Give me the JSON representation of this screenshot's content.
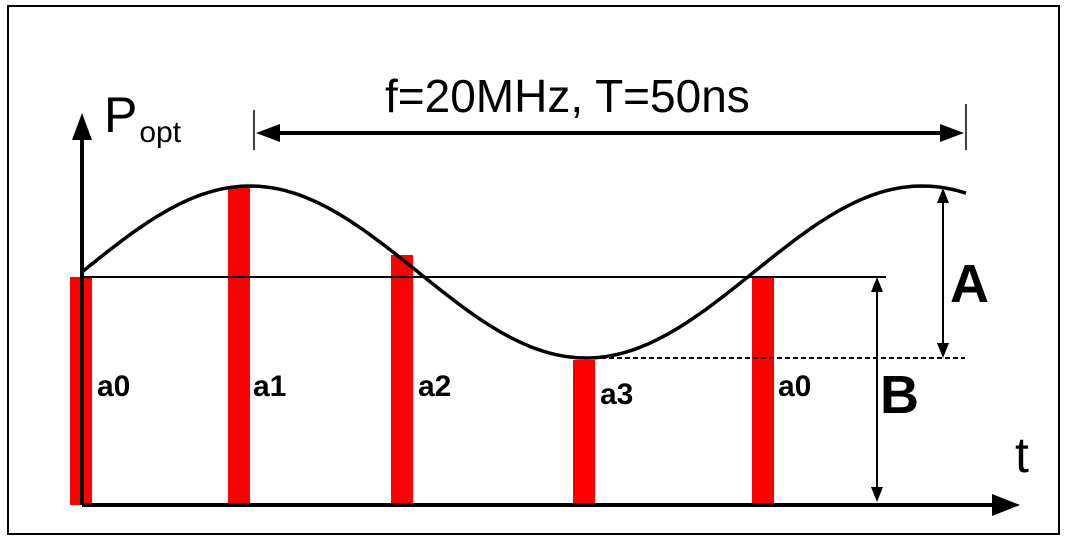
{
  "diagram": {
    "y_axis_label_main": "P",
    "y_axis_label_sub": "opt",
    "x_axis_label": "t",
    "period_label": "f=20MHz, T=50ns",
    "amplitude_label": "A",
    "offset_label": "B",
    "samples": [
      {
        "label": "a0"
      },
      {
        "label": "a1"
      },
      {
        "label": "a2"
      },
      {
        "label": "a3"
      },
      {
        "label": "a0"
      }
    ],
    "colors": {
      "sample_bar": "#ff0000",
      "ink": "#000000",
      "frame": "#000000",
      "background": "#ffffff"
    }
  }
}
